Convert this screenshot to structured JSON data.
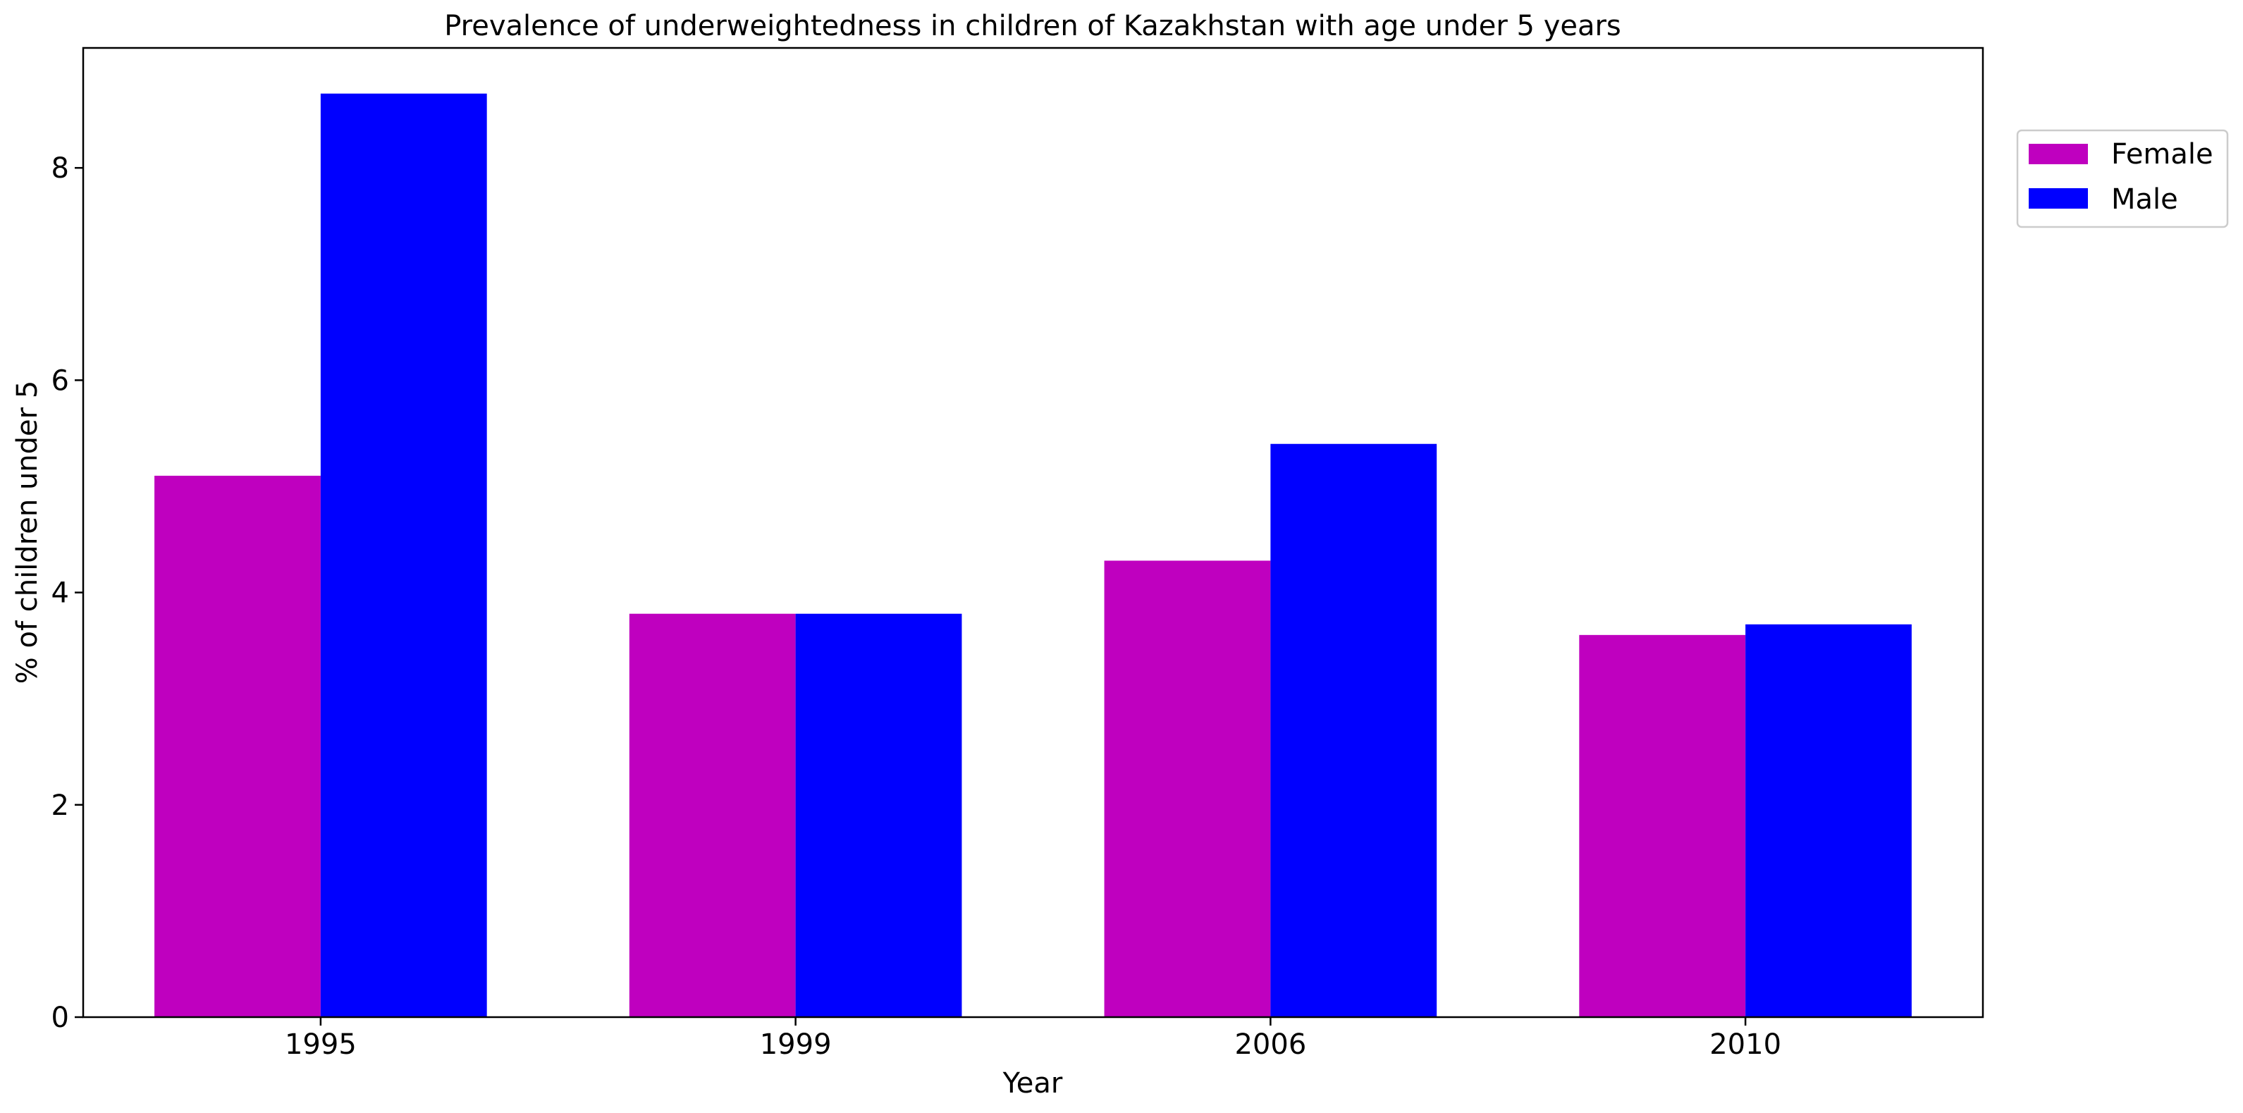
{
  "chart_data": {
    "type": "bar",
    "title": "Prevalence of underweightedness in children of Kazakhstan with age under 5 years",
    "xlabel": "Year",
    "ylabel": "% of children under 5",
    "categories": [
      "1995",
      "1999",
      "2006",
      "2010"
    ],
    "series": [
      {
        "name": "Female",
        "color": "#bf00bf",
        "values": [
          5.1,
          3.8,
          4.3,
          3.6
        ]
      },
      {
        "name": "Male",
        "color": "#0000ff",
        "values": [
          8.7,
          3.8,
          5.4,
          3.7
        ]
      }
    ],
    "ylim": [
      0,
      9.13
    ],
    "yticks": [
      0,
      2,
      4,
      6,
      8
    ],
    "grid": false,
    "legend": "top-right, outside plot area"
  }
}
